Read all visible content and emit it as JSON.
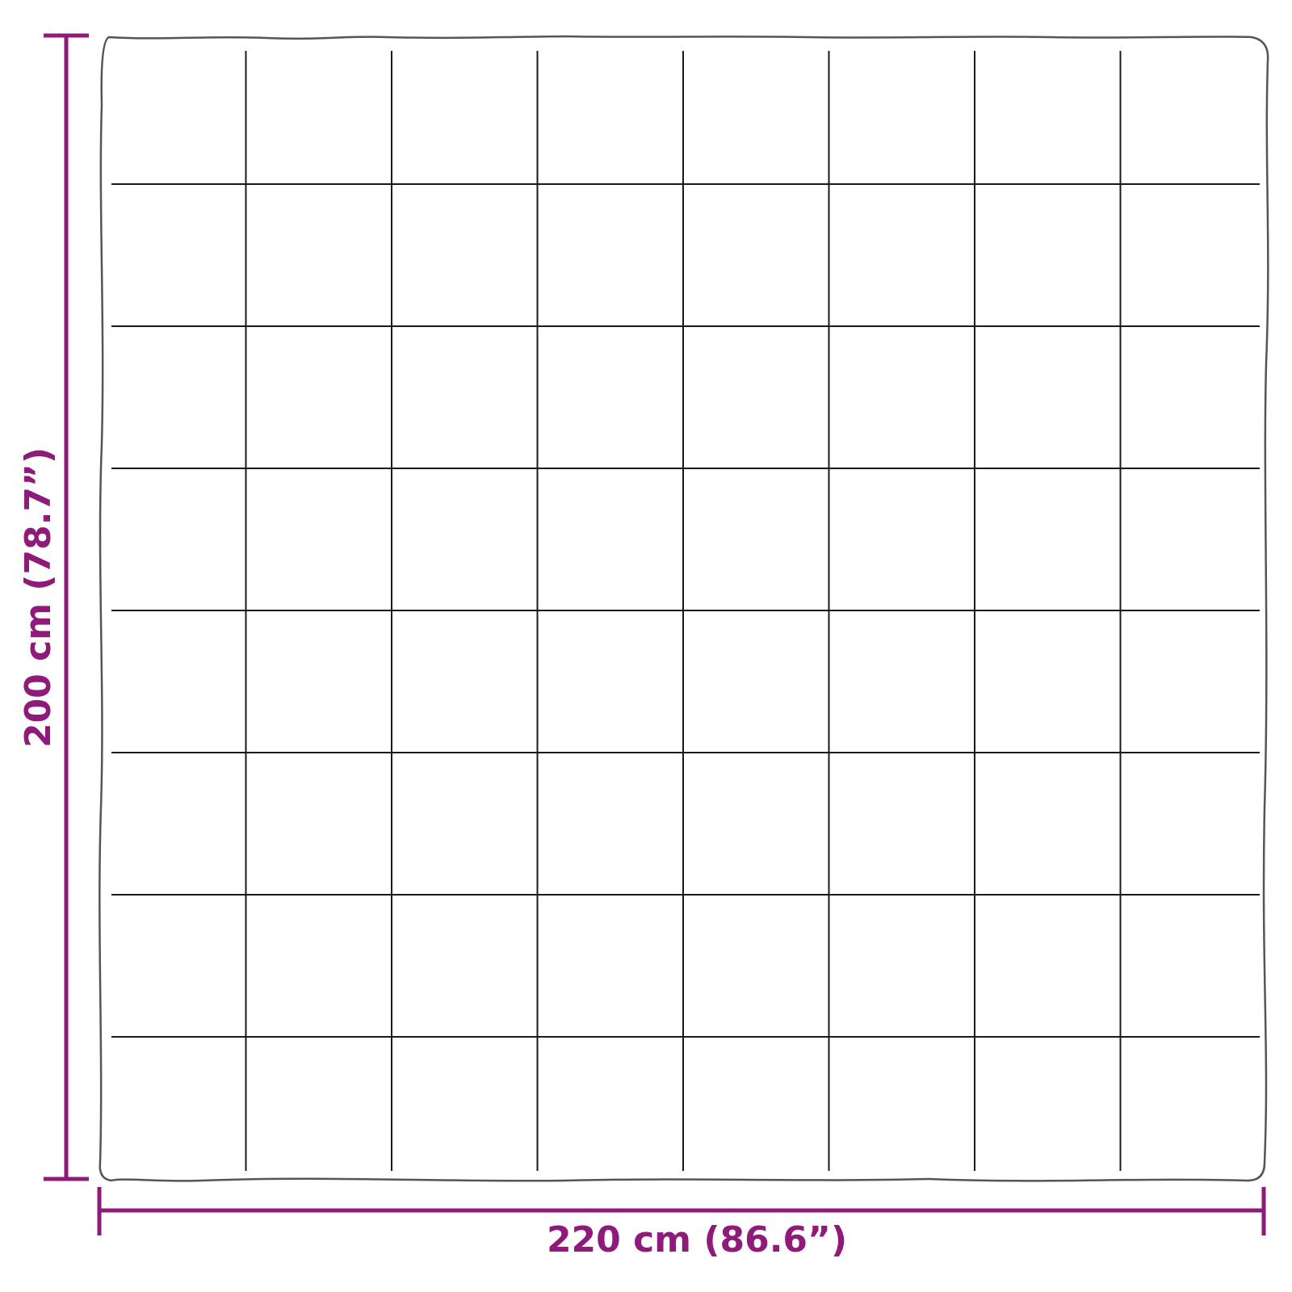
{
  "colors": {
    "dimension": "#8e1a7a",
    "outline": "#555555",
    "seams": "#1a1a1a"
  },
  "dimensions": {
    "width_label": "220 cm (86.6”)",
    "height_label": "200 cm (78.7”)"
  },
  "blanket": {
    "columns": 8,
    "rows": 8
  }
}
